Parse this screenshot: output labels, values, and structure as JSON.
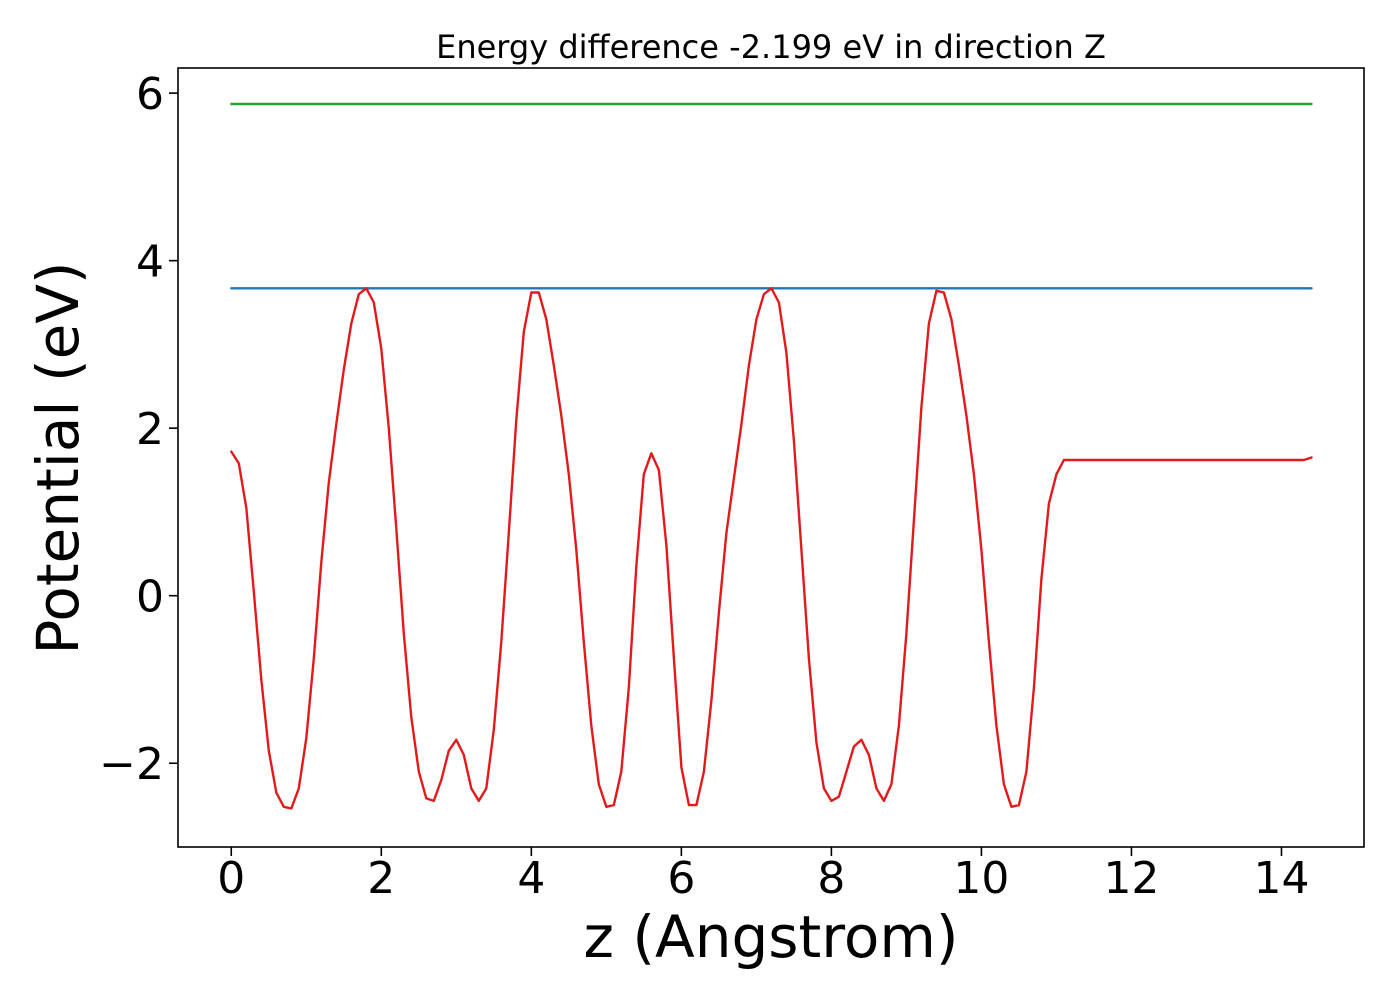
{
  "chart_data": {
    "type": "line",
    "title": "Energy difference -2.199 eV in direction Z",
    "xlabel": "z (Angstrom)",
    "ylabel": "Potential (eV)",
    "xlim": [
      -0.71,
      15.1
    ],
    "ylim": [
      -3.0,
      6.3
    ],
    "xticks": [
      0,
      2,
      4,
      6,
      8,
      10,
      12,
      14
    ],
    "xtick_labels": [
      "0",
      "2",
      "4",
      "6",
      "8",
      "10",
      "12",
      "14"
    ],
    "yticks": [
      -2,
      0,
      2,
      4,
      6
    ],
    "ytick_labels": [
      "−2",
      "0",
      "2",
      "4",
      "6"
    ],
    "grid": false,
    "legend": "none",
    "series": [
      {
        "color": "#2ca02c",
        "x": [
          0,
          14.4
        ],
        "y": [
          5.87,
          5.87
        ]
      },
      {
        "color": "#1f77b4",
        "x": [
          0,
          14.4
        ],
        "y": [
          3.67,
          3.67
        ]
      },
      {
        "color": "#e31a1c",
        "x": [
          0.0,
          0.1,
          0.2,
          0.3,
          0.4,
          0.5,
          0.6,
          0.7,
          0.8,
          0.9,
          1.0,
          1.1,
          1.2,
          1.3,
          1.4,
          1.5,
          1.6,
          1.7,
          1.8,
          1.9,
          2.0,
          2.1,
          2.2,
          2.3,
          2.4,
          2.5,
          2.6,
          2.7,
          2.8,
          2.9,
          3.0,
          3.1,
          3.2,
          3.3,
          3.4,
          3.5,
          3.6,
          3.7,
          3.8,
          3.9,
          4.0,
          4.1,
          4.2,
          4.3,
          4.4,
          4.5,
          4.6,
          4.7,
          4.8,
          4.9,
          5.0,
          5.1,
          5.2,
          5.3,
          5.4,
          5.5,
          5.6,
          5.7,
          5.8,
          5.9,
          6.0,
          6.1,
          6.2,
          6.3,
          6.4,
          6.5,
          6.6,
          6.7,
          6.8,
          6.9,
          7.0,
          7.1,
          7.2,
          7.3,
          7.4,
          7.5,
          7.6,
          7.7,
          7.8,
          7.9,
          8.0,
          8.1,
          8.2,
          8.3,
          8.4,
          8.5,
          8.6,
          8.7,
          8.8,
          8.9,
          9.0,
          9.1,
          9.2,
          9.3,
          9.4,
          9.5,
          9.6,
          9.7,
          9.8,
          9.9,
          10.0,
          10.1,
          10.2,
          10.3,
          10.4,
          10.5,
          10.6,
          10.7,
          10.8,
          10.9,
          11.0,
          11.1,
          11.2,
          11.3,
          11.4,
          11.5,
          11.6,
          11.7,
          11.8,
          11.9,
          12.0,
          12.1,
          12.2,
          12.3,
          12.4,
          12.5,
          12.6,
          12.7,
          12.8,
          12.9,
          13.0,
          13.1,
          13.2,
          13.3,
          13.4,
          13.5,
          13.6,
          13.7,
          13.8,
          13.9,
          14.0,
          14.1,
          14.2,
          14.3,
          14.4
        ],
        "y": [
          1.72,
          1.58,
          1.05,
          0.05,
          -1.0,
          -1.85,
          -2.35,
          -2.52,
          -2.54,
          -2.3,
          -1.7,
          -0.75,
          0.4,
          1.35,
          2.05,
          2.7,
          3.25,
          3.6,
          3.67,
          3.5,
          2.95,
          2.0,
          0.8,
          -0.45,
          -1.45,
          -2.1,
          -2.42,
          -2.45,
          -2.2,
          -1.85,
          -1.72,
          -1.9,
          -2.3,
          -2.45,
          -2.3,
          -1.6,
          -0.55,
          0.75,
          2.1,
          3.15,
          3.62,
          3.62,
          3.3,
          2.75,
          2.15,
          1.45,
          0.55,
          -0.55,
          -1.55,
          -2.25,
          -2.52,
          -2.5,
          -2.1,
          -1.1,
          0.35,
          1.45,
          1.7,
          1.5,
          0.6,
          -0.75,
          -2.05,
          -2.5,
          -2.5,
          -2.1,
          -1.25,
          -0.2,
          0.75,
          1.4,
          2.05,
          2.75,
          3.3,
          3.6,
          3.67,
          3.5,
          2.9,
          1.85,
          0.55,
          -0.75,
          -1.75,
          -2.3,
          -2.45,
          -2.4,
          -2.1,
          -1.8,
          -1.72,
          -1.9,
          -2.3,
          -2.45,
          -2.25,
          -1.55,
          -0.45,
          0.9,
          2.25,
          3.25,
          3.64,
          3.62,
          3.3,
          2.75,
          2.15,
          1.45,
          0.55,
          -0.55,
          -1.55,
          -2.25,
          -2.52,
          -2.5,
          -2.1,
          -1.1,
          0.2,
          1.1,
          1.45,
          1.62,
          1.62,
          1.62,
          1.62,
          1.62,
          1.62,
          1.62,
          1.62,
          1.62,
          1.62,
          1.62,
          1.62,
          1.62,
          1.62,
          1.62,
          1.62,
          1.62,
          1.62,
          1.62,
          1.62,
          1.62,
          1.62,
          1.62,
          1.62,
          1.62,
          1.62,
          1.62,
          1.62,
          1.62,
          1.62,
          1.62,
          1.62,
          1.62,
          1.65
        ]
      }
    ]
  }
}
